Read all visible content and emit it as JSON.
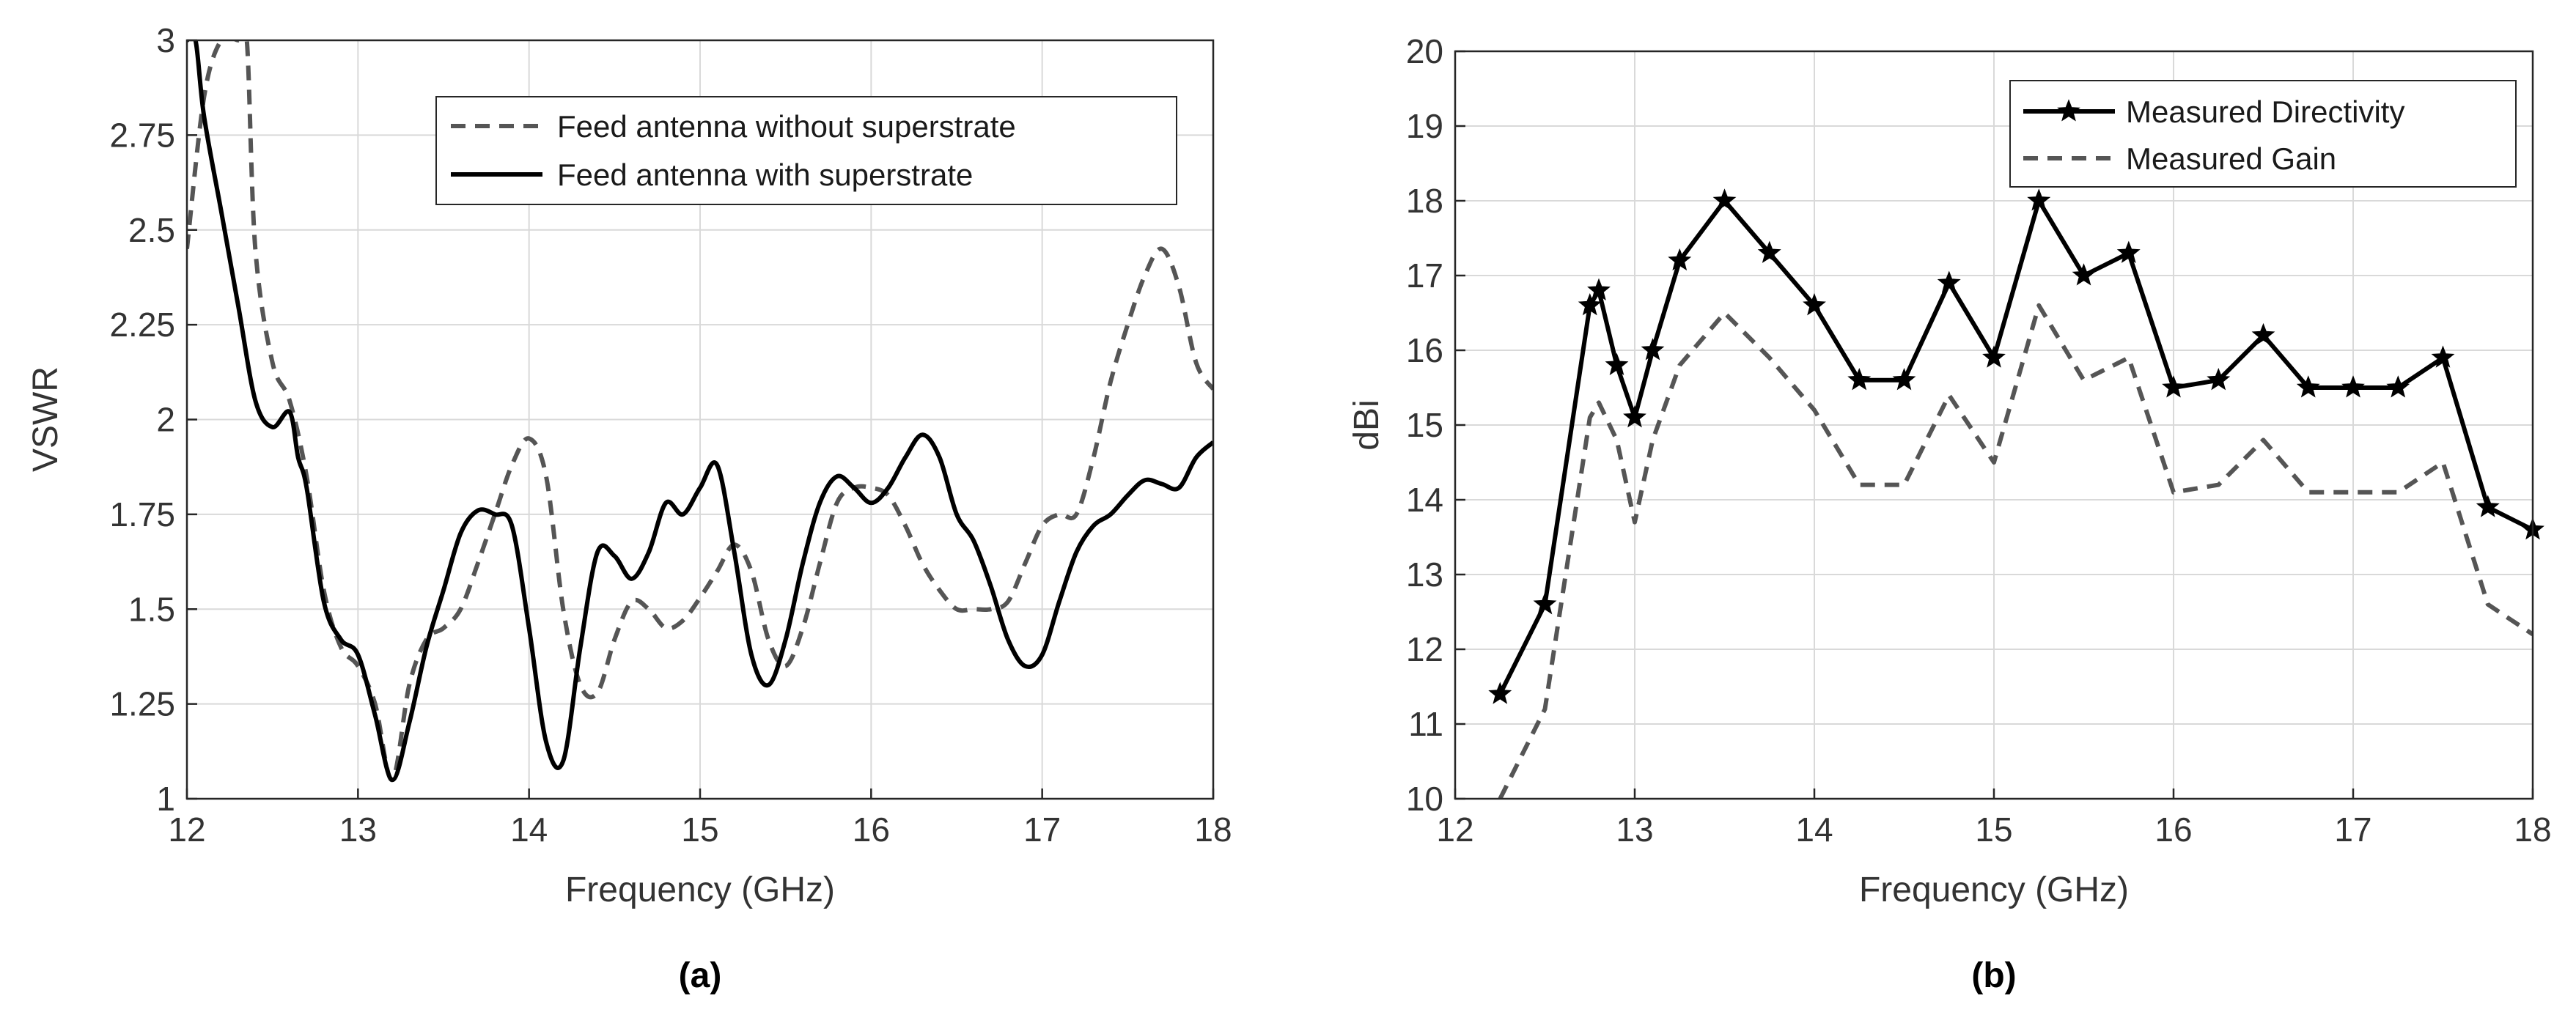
{
  "chart_data": [
    {
      "panel": "(a)",
      "type": "line",
      "xlabel": "Frequency (GHz)",
      "ylabel": "VSWR",
      "xlim": [
        12,
        18
      ],
      "ylim": [
        1,
        3
      ],
      "xticks": [
        12,
        13,
        14,
        15,
        16,
        17,
        18
      ],
      "xtick_labels": [
        "12",
        "13",
        "14",
        "15",
        "16",
        "17",
        "18"
      ],
      "yticks": [
        1,
        1.25,
        1.5,
        1.75,
        2,
        2.25,
        2.5,
        2.75,
        3
      ],
      "ytick_labels": [
        "1",
        "1.25",
        "1.5",
        "1.75",
        "2",
        "2.25",
        "2.5",
        "2.75",
        "3"
      ],
      "grid": true,
      "legend_position": "top-right",
      "series": [
        {
          "name": "Feed antenna without superstrate",
          "style": "dashed",
          "color": "#555555",
          "x": [
            12.0,
            12.1,
            12.2,
            12.3,
            12.35,
            12.4,
            12.5,
            12.6,
            12.7,
            12.8,
            12.9,
            13.0,
            13.1,
            13.2,
            13.3,
            13.4,
            13.5,
            13.6,
            13.7,
            13.8,
            13.9,
            14.0,
            14.1,
            14.2,
            14.3,
            14.4,
            14.5,
            14.6,
            14.7,
            14.8,
            14.9,
            15.0,
            15.1,
            15.2,
            15.3,
            15.4,
            15.5,
            15.6,
            15.7,
            15.8,
            15.9,
            16.0,
            16.1,
            16.2,
            16.3,
            16.4,
            16.5,
            16.6,
            16.7,
            16.8,
            16.9,
            17.0,
            17.1,
            17.2,
            17.3,
            17.4,
            17.5,
            17.6,
            17.7,
            17.8,
            17.9,
            18.0
          ],
          "y": [
            2.45,
            2.85,
            3.0,
            3.0,
            3.0,
            2.45,
            2.15,
            2.05,
            1.85,
            1.55,
            1.4,
            1.35,
            1.25,
            1.05,
            1.3,
            1.42,
            1.45,
            1.5,
            1.62,
            1.75,
            1.88,
            1.95,
            1.85,
            1.5,
            1.3,
            1.28,
            1.42,
            1.52,
            1.5,
            1.45,
            1.47,
            1.53,
            1.6,
            1.67,
            1.6,
            1.42,
            1.35,
            1.45,
            1.62,
            1.78,
            1.82,
            1.82,
            1.8,
            1.72,
            1.62,
            1.55,
            1.5,
            1.5,
            1.5,
            1.52,
            1.62,
            1.72,
            1.75,
            1.75,
            1.9,
            2.1,
            2.25,
            2.38,
            2.45,
            2.35,
            2.15,
            2.08
          ]
        },
        {
          "name": "Feed antenna with superstrate",
          "style": "solid",
          "color": "#000000",
          "x": [
            12.0,
            12.05,
            12.1,
            12.2,
            12.3,
            12.4,
            12.5,
            12.6,
            12.65,
            12.7,
            12.8,
            12.9,
            13.0,
            13.1,
            13.2,
            13.3,
            13.4,
            13.5,
            13.6,
            13.7,
            13.8,
            13.9,
            14.0,
            14.1,
            14.2,
            14.3,
            14.4,
            14.5,
            14.6,
            14.7,
            14.8,
            14.9,
            15.0,
            15.1,
            15.2,
            15.3,
            15.4,
            15.5,
            15.6,
            15.7,
            15.8,
            15.9,
            16.0,
            16.1,
            16.2,
            16.3,
            16.4,
            16.5,
            16.6,
            16.7,
            16.8,
            16.9,
            17.0,
            17.1,
            17.2,
            17.3,
            17.4,
            17.5,
            17.6,
            17.7,
            17.8,
            17.9,
            18.0
          ],
          "y": [
            3.0,
            3.0,
            2.8,
            2.55,
            2.3,
            2.05,
            1.98,
            2.02,
            1.9,
            1.82,
            1.52,
            1.42,
            1.38,
            1.22,
            1.05,
            1.2,
            1.4,
            1.55,
            1.7,
            1.76,
            1.75,
            1.72,
            1.45,
            1.15,
            1.1,
            1.4,
            1.65,
            1.64,
            1.58,
            1.65,
            1.78,
            1.75,
            1.82,
            1.88,
            1.65,
            1.38,
            1.3,
            1.42,
            1.62,
            1.78,
            1.85,
            1.82,
            1.78,
            1.82,
            1.9,
            1.96,
            1.9,
            1.75,
            1.68,
            1.56,
            1.42,
            1.35,
            1.38,
            1.52,
            1.65,
            1.72,
            1.75,
            1.8,
            1.84,
            1.83,
            1.82,
            1.9,
            1.94
          ]
        }
      ]
    },
    {
      "panel": "(b)",
      "type": "line",
      "xlabel": "Frequency (GHz)",
      "ylabel": "dBi",
      "xlim": [
        12,
        18
      ],
      "ylim": [
        10,
        20
      ],
      "xticks": [
        12,
        13,
        14,
        15,
        16,
        17,
        18
      ],
      "xtick_labels": [
        "12",
        "13",
        "14",
        "15",
        "16",
        "17",
        "18"
      ],
      "yticks": [
        10,
        11,
        12,
        13,
        14,
        15,
        16,
        17,
        18,
        19,
        20
      ],
      "ytick_labels": [
        "10",
        "11",
        "12",
        "13",
        "14",
        "15",
        "16",
        "17",
        "18",
        "19",
        "20"
      ],
      "grid": true,
      "legend_position": "top-right",
      "series": [
        {
          "name": "Measured Directivity",
          "style": "solid-with-star-markers",
          "color": "#000000",
          "x": [
            12.25,
            12.5,
            12.75,
            12.8,
            12.9,
            13.0,
            13.1,
            13.25,
            13.5,
            13.75,
            14.0,
            14.25,
            14.5,
            14.75,
            15.0,
            15.25,
            15.5,
            15.75,
            16.0,
            16.25,
            16.5,
            16.75,
            17.0,
            17.25,
            17.5,
            17.75,
            18.0
          ],
          "y": [
            11.4,
            12.6,
            16.6,
            16.8,
            15.8,
            15.1,
            16.0,
            17.2,
            18.0,
            17.3,
            16.6,
            15.6,
            15.6,
            16.9,
            15.9,
            18.0,
            17.0,
            17.3,
            15.5,
            15.6,
            16.2,
            15.5,
            15.5,
            15.5,
            15.9,
            13.9,
            13.6
          ]
        },
        {
          "name": "Measured Gain",
          "style": "dashed",
          "color": "#555555",
          "x": [
            12.25,
            12.5,
            12.75,
            12.8,
            12.9,
            13.0,
            13.1,
            13.25,
            13.5,
            13.75,
            14.0,
            14.25,
            14.5,
            14.75,
            15.0,
            15.25,
            15.5,
            15.75,
            16.0,
            16.25,
            16.5,
            16.75,
            17.0,
            17.25,
            17.5,
            17.75,
            18.0
          ],
          "y": [
            10.0,
            11.2,
            15.1,
            15.3,
            14.8,
            13.7,
            14.8,
            15.8,
            16.5,
            15.9,
            15.2,
            14.2,
            14.2,
            15.4,
            14.5,
            16.6,
            15.6,
            15.9,
            14.1,
            14.2,
            14.8,
            14.1,
            14.1,
            14.1,
            14.5,
            12.6,
            12.2
          ]
        }
      ]
    }
  ]
}
